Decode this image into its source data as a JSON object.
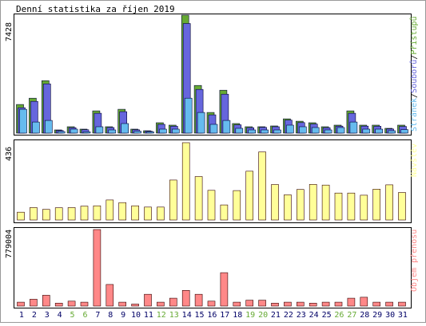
{
  "title": "Denní statistika za říjen 2019",
  "chart_data": [
    {
      "type": "bar",
      "panel": "top",
      "categories": [
        "1",
        "2",
        "3",
        "4",
        "5",
        "6",
        "7",
        "8",
        "9",
        "10",
        "11",
        "12",
        "13",
        "14",
        "15",
        "16",
        "17",
        "18",
        "19",
        "20",
        "21",
        "22",
        "23",
        "24",
        "25",
        "26",
        "27",
        "28",
        "29",
        "30",
        "31"
      ],
      "ylim": [
        0,
        7428
      ],
      "ymax_label": "7428",
      "legend": [
        "Stránek",
        "Souborů",
        "Přístupů"
      ],
      "series": [
        {
          "name": "Přístupů",
          "color": "#66aa33",
          "values": [
            1800,
            2200,
            3300,
            200,
            400,
            250,
            1400,
            400,
            1500,
            250,
            150,
            650,
            500,
            7428,
            3000,
            1300,
            2700,
            600,
            400,
            400,
            450,
            900,
            750,
            650,
            400,
            500,
            1400,
            500,
            500,
            300,
            500
          ]
        },
        {
          "name": "Souborů",
          "color": "#6666dd",
          "values": [
            1600,
            2000,
            3100,
            160,
            340,
            210,
            1250,
            350,
            1350,
            210,
            120,
            550,
            430,
            6900,
            2750,
            1150,
            2450,
            520,
            340,
            360,
            400,
            820,
            660,
            570,
            340,
            440,
            1250,
            440,
            430,
            260,
            420
          ]
        },
        {
          "name": "Stránek",
          "color": "#66bbee",
          "values": [
            1500,
            700,
            800,
            100,
            250,
            80,
            400,
            200,
            600,
            120,
            80,
            250,
            250,
            2200,
            1300,
            550,
            800,
            300,
            200,
            200,
            200,
            500,
            400,
            350,
            200,
            350,
            700,
            250,
            250,
            150,
            220
          ]
        }
      ]
    },
    {
      "type": "bar",
      "panel": "middle",
      "categories": [
        "1",
        "2",
        "3",
        "4",
        "5",
        "6",
        "7",
        "8",
        "9",
        "10",
        "11",
        "12",
        "13",
        "14",
        "15",
        "16",
        "17",
        "18",
        "19",
        "20",
        "21",
        "22",
        "23",
        "24",
        "25",
        "26",
        "27",
        "28",
        "29",
        "30",
        "31"
      ],
      "ylim": [
        0,
        436
      ],
      "ymax_label": "436",
      "legend": [
        "Návštěv"
      ],
      "series": [
        {
          "name": "Návštěv",
          "color": "#ffff99",
          "values": [
            44,
            70,
            60,
            69,
            70,
            78,
            80,
            113,
            98,
            80,
            73,
            73,
            225,
            436,
            245,
            167,
            85,
            166,
            275,
            384,
            200,
            142,
            172,
            201,
            197,
            152,
            152,
            140,
            174,
            198,
            155
          ]
        }
      ]
    },
    {
      "type": "bar",
      "panel": "bottom",
      "categories": [
        "1",
        "2",
        "3",
        "4",
        "5",
        "6",
        "7",
        "8",
        "9",
        "10",
        "11",
        "12",
        "13",
        "14",
        "15",
        "16",
        "17",
        "18",
        "19",
        "20",
        "21",
        "22",
        "23",
        "24",
        "25",
        "26",
        "27",
        "28",
        "29",
        "30",
        "31"
      ],
      "ylim": [
        0,
        779004
      ],
      "ymax_label": "779004",
      "legend": [
        "Objem přenosu"
      ],
      "series": [
        {
          "name": "Objem přenosu",
          "color": "#ff8888",
          "values": [
            40000,
            70000,
            110000,
            30000,
            50000,
            40000,
            779004,
            220000,
            40000,
            20000,
            120000,
            40000,
            80000,
            160000,
            120000,
            50000,
            340000,
            40000,
            60000,
            60000,
            30000,
            40000,
            40000,
            30000,
            40000,
            40000,
            80000,
            90000,
            40000,
            40000,
            40000
          ]
        }
      ]
    }
  ],
  "x_day_colors": {
    "weekday": "#000066",
    "weekend": "#66aa33",
    "weekend_days": [
      "5",
      "6",
      "12",
      "13",
      "19",
      "20",
      "26",
      "27"
    ]
  }
}
